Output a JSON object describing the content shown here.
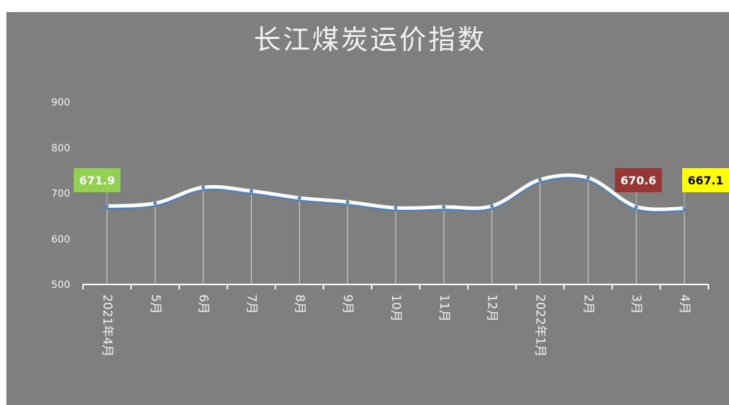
{
  "chart_data": {
    "type": "line",
    "title": "长江煤炭运价指数",
    "xlabel": "",
    "ylabel": "",
    "ylim": [
      500,
      900
    ],
    "yticks": [
      500,
      600,
      700,
      800,
      900
    ],
    "categories": [
      "2021年4月",
      "5月",
      "6月",
      "7月",
      "8月",
      "9月",
      "10月",
      "11月",
      "12月",
      "2022年1月",
      "2月",
      "3月",
      "4月"
    ],
    "series": [
      {
        "values": [
          671.9,
          678,
          713,
          705,
          690,
          681,
          668,
          670,
          672,
          730,
          734,
          670.6,
          667.1
        ]
      }
    ],
    "data_labels": [
      {
        "index": 0,
        "text": "671.9",
        "bg": "#92d050",
        "color": "#ffffff"
      },
      {
        "index": 11,
        "text": "670.6",
        "bg": "#953735",
        "color": "#ffffff"
      },
      {
        "index": 12,
        "text": "667.1",
        "bg": "#ffff00",
        "color": "#000000"
      }
    ],
    "grid": false,
    "legend": "none",
    "colors": {
      "background": "#7f7f7f",
      "line": "#ffffff",
      "line_shadow": "#4f81bd",
      "axis": "#ffffff",
      "text": "#f2f2f2"
    }
  }
}
